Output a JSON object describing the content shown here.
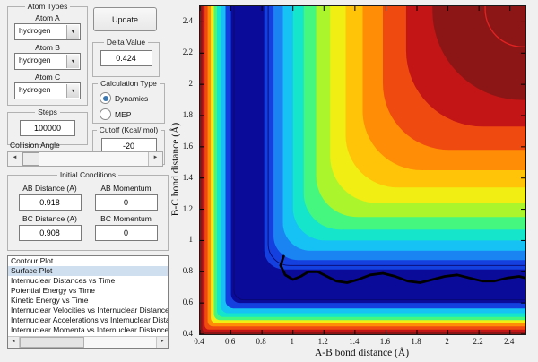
{
  "icons": {
    "dropdown_arrow": "▼",
    "arrow_left": "◄",
    "arrow_right": "►"
  },
  "panels": {
    "atom_types": {
      "title": "Atom Types",
      "fields": [
        {
          "label": "Atom A",
          "value": "hydrogen"
        },
        {
          "label": "Atom B",
          "value": "hydrogen"
        },
        {
          "label": "Atom C",
          "value": "hydrogen"
        }
      ]
    },
    "update_button": "Update",
    "delta": {
      "title": "Delta Value",
      "value": "0.424"
    },
    "calculation_type": {
      "title": "Calculation Type",
      "options": [
        {
          "label": "Dynamics",
          "selected": true
        },
        {
          "label": "MEP",
          "selected": false
        }
      ]
    },
    "steps": {
      "title": "Steps",
      "value": "100000"
    },
    "cutoff": {
      "title": "Cutoff (Kcal/ mol)",
      "value": "-20"
    },
    "collision_angle": {
      "label": "Collision Angle"
    },
    "initial_conditions": {
      "title": "Initial Conditions",
      "fields": [
        {
          "label": "AB Distance (A)",
          "value": "0.918"
        },
        {
          "label": "AB Momentum",
          "value": "0"
        },
        {
          "label": "BC Distance (A)",
          "value": "0.908"
        },
        {
          "label": "BC Momentum",
          "value": "0"
        }
      ]
    },
    "plot_list": {
      "items": [
        "Contour Plot",
        "Surface Plot",
        "Internuclear Distances vs Time",
        "Potential Energy vs Time",
        "Kinetic Energy vs Time",
        "Internuclear Velocities vs Internuclear Distance",
        "Internuclear Accelerations vs Internuclear Dista",
        "Internuclear Momenta vs Internuclear Distance"
      ],
      "selected_index": 1
    }
  },
  "chart_data": {
    "type": "heatmap",
    "subtype": "filled_contour_potential_energy_surface",
    "title": "",
    "xlabel": "A-B bond distance (Å)",
    "ylabel": "B-C bond distance (Å)",
    "x_range": [
      0.4,
      2.5
    ],
    "y_range": [
      0.4,
      2.5
    ],
    "x_ticks": [
      "0.4",
      "0.6",
      "0.8",
      "1",
      "1.2",
      "1.4",
      "1.6",
      "1.8",
      "2",
      "2.2",
      "2.4"
    ],
    "y_ticks": [
      "0.4",
      "0.6",
      "0.8",
      "1",
      "1.2",
      "1.4",
      "1.6",
      "1.8",
      "2",
      "2.2",
      "2.4"
    ],
    "grid": false,
    "legend": "none",
    "colormap": "jet",
    "plateau_color": "#8c1616",
    "bands": [
      {
        "d": 1.9,
        "r": 100,
        "color": "#c31515"
      },
      {
        "d": 1.73,
        "r": 85,
        "color": "#ef4b10"
      },
      {
        "d": 1.58,
        "r": 74,
        "color": "#ff8d05"
      },
      {
        "d": 1.45,
        "r": 66,
        "color": "#ffc408"
      },
      {
        "d": 1.34,
        "r": 58,
        "color": "#f0ee12"
      },
      {
        "d": 1.24,
        "r": 52,
        "color": "#aaf52c"
      },
      {
        "d": 1.15,
        "r": 46,
        "color": "#45f77f"
      },
      {
        "d": 1.07,
        "r": 40,
        "color": "#14e5cb"
      },
      {
        "d": 1.0,
        "r": 36,
        "color": "#16c2f4"
      },
      {
        "d": 0.935,
        "r": 31,
        "color": "#1a85f2"
      },
      {
        "d": 0.875,
        "r": 27,
        "color": "#1440e0"
      },
      {
        "d": 0.815,
        "r": 22,
        "color": "#0b0b9a"
      },
      {
        "d": 0.6,
        "r": 10,
        "color": "#1440e0"
      },
      {
        "d": 0.565,
        "r": 9,
        "color": "#16c2f4"
      },
      {
        "d": 0.535,
        "r": 8,
        "color": "#14e5cb"
      },
      {
        "d": 0.51,
        "r": 7,
        "color": "#45f77f"
      },
      {
        "d": 0.49,
        "r": 7,
        "color": "#f0ee12"
      },
      {
        "d": 0.47,
        "r": 6,
        "color": "#ff8d05"
      },
      {
        "d": 0.45,
        "r": 6,
        "color": "#ef4b10"
      },
      {
        "d": 0.43,
        "r": 5,
        "color": "#c31515"
      },
      {
        "d": 0.415,
        "r": 4,
        "color": "#8c1616"
      }
    ],
    "contour_lines": [
      {
        "d": 2.24,
        "r": 42,
        "color": "#e32222",
        "width": 1.3
      },
      {
        "d": 0.84,
        "r": 24,
        "color": "#08086e",
        "width": 0.9
      },
      {
        "d": 0.62,
        "r": 11,
        "color": "#08086e",
        "width": 0.9
      }
    ],
    "trajectory": {
      "color": "#000000",
      "width": 2.8,
      "points": [
        [
          0.94,
          0.9
        ],
        [
          0.92,
          0.84
        ],
        [
          0.95,
          0.78
        ],
        [
          1.0,
          0.75
        ],
        [
          1.05,
          0.77
        ],
        [
          1.1,
          0.8
        ],
        [
          1.16,
          0.8
        ],
        [
          1.22,
          0.77
        ],
        [
          1.28,
          0.74
        ],
        [
          1.35,
          0.73
        ],
        [
          1.42,
          0.75
        ],
        [
          1.5,
          0.78
        ],
        [
          1.58,
          0.79
        ],
        [
          1.66,
          0.77
        ],
        [
          1.74,
          0.74
        ],
        [
          1.82,
          0.73
        ],
        [
          1.9,
          0.75
        ],
        [
          1.98,
          0.77
        ],
        [
          2.06,
          0.78
        ],
        [
          2.14,
          0.76
        ],
        [
          2.22,
          0.74
        ],
        [
          2.3,
          0.74
        ],
        [
          2.38,
          0.76
        ],
        [
          2.46,
          0.77
        ],
        [
          2.5,
          0.76
        ]
      ]
    }
  }
}
